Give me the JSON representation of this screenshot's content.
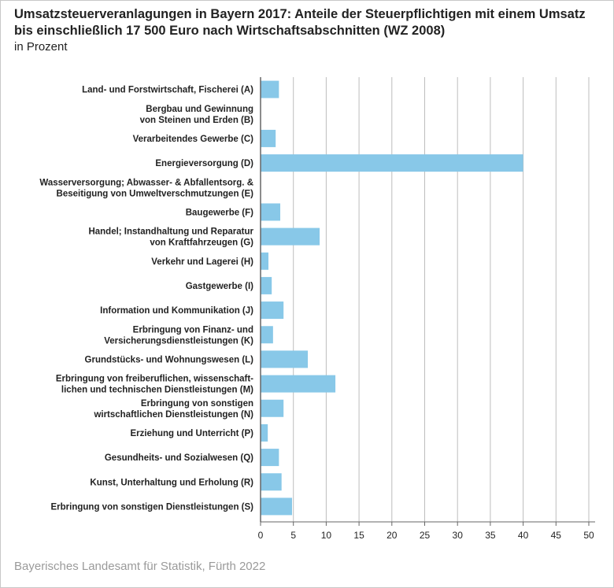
{
  "title": "Umsatzsteuerveranlagungen in Bayern 2017: Anteile der Steuerpflichtigen mit einem Umsatz bis einschließlich 17 500 Euro nach Wirtschaftsabschnitten (WZ 2008)",
  "subtitle": "in Prozent",
  "footer": "Bayerisches Landesamt für Statistik, Fürth 2022",
  "colors": {
    "bar": "#88c8e8",
    "axis": "#666666",
    "grid": "#bdbdbd"
  },
  "chart_data": {
    "type": "bar",
    "orientation": "horizontal",
    "title": "Umsatzsteuerveranlagungen in Bayern 2017: Anteile der Steuerpflichtigen mit einem Umsatz bis einschließlich 17 500 Euro nach Wirtschaftsabschnitten (WZ 2008)",
    "subtitle": "in Prozent",
    "xlabel": "",
    "ylabel": "",
    "xlim": [
      0,
      50
    ],
    "xticks": [
      0,
      5,
      10,
      15,
      20,
      25,
      30,
      35,
      40,
      45,
      50
    ],
    "grid": true,
    "categories": [
      [
        "Land- und Forstwirtschaft, Fischerei (A)"
      ],
      [
        "Bergbau und Gewinnung",
        "von Steinen und Erden (B)"
      ],
      [
        "Verarbeitendes Gewerbe (C)"
      ],
      [
        "Energieversorgung (D)"
      ],
      [
        "Wasserversorgung; Abwasser- & Abfallentsorg. &",
        "Beseitigung von Umweltverschmutzungen (E)"
      ],
      [
        "Baugewerbe (F)"
      ],
      [
        "Handel; Instandhaltung und Reparatur",
        "von Kraftfahrzeugen (G)"
      ],
      [
        "Verkehr und Lagerei (H)"
      ],
      [
        "Gastgewerbe (I)"
      ],
      [
        "Information und Kommunikation (J)"
      ],
      [
        "Erbringung von Finanz- und",
        "Versicherungsdienstleistungen (K)"
      ],
      [
        "Grundstücks- und Wohnungswesen (L)"
      ],
      [
        "Erbringung von freiberuflichen, wissenschaft-",
        "lichen und technischen Dienstleistungen (M)"
      ],
      [
        "Erbringung von sonstigen",
        "wirtschaftlichen Dienstleistungen (N)"
      ],
      [
        "Erziehung und Unterricht (P)"
      ],
      [
        "Gesundheits- und Sozialwesen (Q)"
      ],
      [
        "Kunst, Unterhaltung und Erholung (R)"
      ],
      [
        "Erbringung von sonstigen Dienstleistungen (S)"
      ]
    ],
    "values": [
      2.8,
      0,
      2.3,
      40.0,
      0,
      3.0,
      9.0,
      1.2,
      1.7,
      3.5,
      1.9,
      7.2,
      11.4,
      3.5,
      1.1,
      2.8,
      3.2,
      4.8
    ]
  }
}
